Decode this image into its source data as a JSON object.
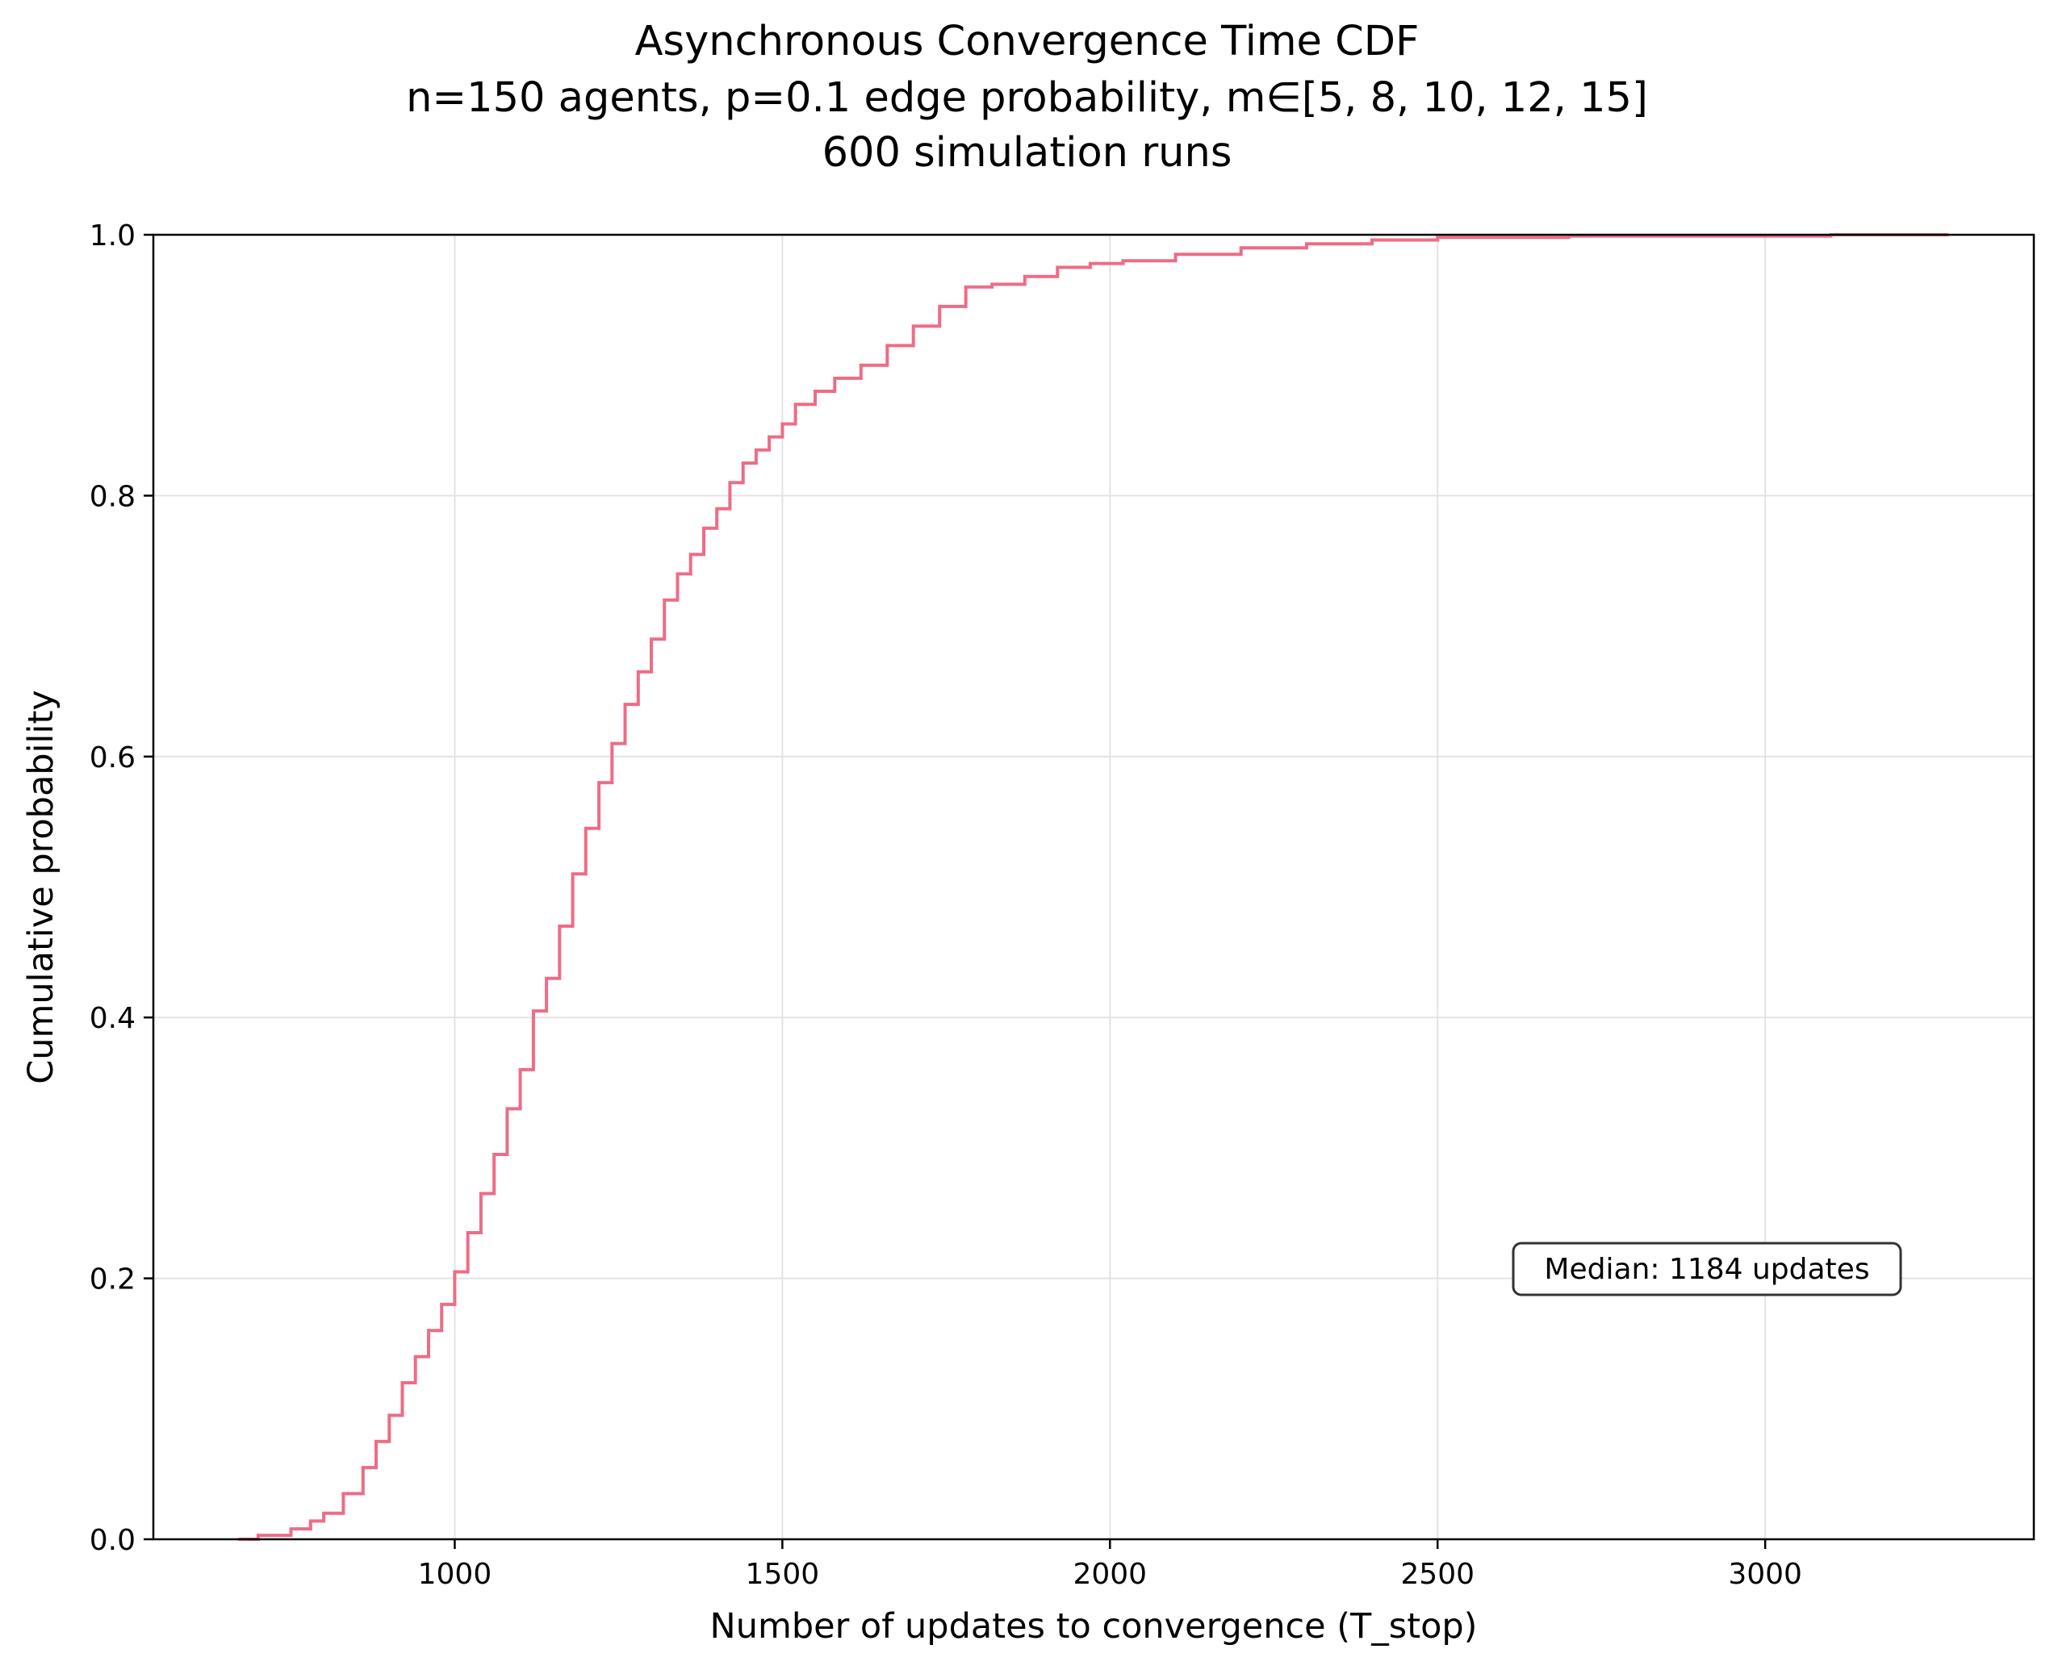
{
  "chart_data": {
    "type": "line",
    "title_lines": [
      "Asynchronous Convergence Time CDF",
      "n=150 agents, p=0.1 edge probability, m∈[5, 8, 10, 12, 15]",
      "600 simulation runs"
    ],
    "xlabel": "Number of updates to convergence (T_stop)",
    "ylabel": "Cumulative probability",
    "xlim": [
      540,
      3410
    ],
    "ylim": [
      0,
      1.0
    ],
    "xticks": [
      1000,
      1500,
      2000,
      2500,
      3000
    ],
    "yticks": [
      0.0,
      0.2,
      0.4,
      0.6,
      0.8,
      1.0
    ],
    "xtick_labels": [
      "1000",
      "1500",
      "2000",
      "2500",
      "3000"
    ],
    "ytick_labels": [
      "0.0",
      "0.2",
      "0.4",
      "0.6",
      "0.8",
      "1.0"
    ],
    "grid": true,
    "line_color": "#ee6c86",
    "series": [
      {
        "x": [
          670,
          700,
          750,
          780,
          800,
          830,
          860,
          880,
          900,
          920,
          940,
          960,
          980,
          1000,
          1020,
          1040,
          1060,
          1080,
          1100,
          1120,
          1140,
          1160,
          1180,
          1200,
          1220,
          1240,
          1260,
          1280,
          1300,
          1320,
          1340,
          1360,
          1380,
          1400,
          1420,
          1440,
          1460,
          1480,
          1500,
          1520,
          1550,
          1580,
          1620,
          1660,
          1700,
          1740,
          1780,
          1820,
          1870,
          1920,
          1970,
          2020,
          2100,
          2200,
          2300,
          2400,
          2500,
          2700,
          2900,
          3100,
          3280
        ],
        "y": [
          0.0,
          0.003,
          0.008,
          0.014,
          0.02,
          0.035,
          0.055,
          0.075,
          0.095,
          0.12,
          0.14,
          0.16,
          0.18,
          0.205,
          0.235,
          0.265,
          0.295,
          0.33,
          0.36,
          0.405,
          0.43,
          0.47,
          0.51,
          0.545,
          0.58,
          0.61,
          0.64,
          0.665,
          0.69,
          0.72,
          0.74,
          0.755,
          0.775,
          0.79,
          0.81,
          0.825,
          0.835,
          0.845,
          0.855,
          0.87,
          0.88,
          0.89,
          0.9,
          0.915,
          0.93,
          0.945,
          0.96,
          0.962,
          0.968,
          0.975,
          0.978,
          0.98,
          0.985,
          0.99,
          0.993,
          0.996,
          0.998,
          0.999,
          0.999,
          1.0,
          1.0
        ]
      }
    ],
    "annotation": {
      "text": "Median: 1184 updates",
      "position": "lower-right"
    }
  }
}
